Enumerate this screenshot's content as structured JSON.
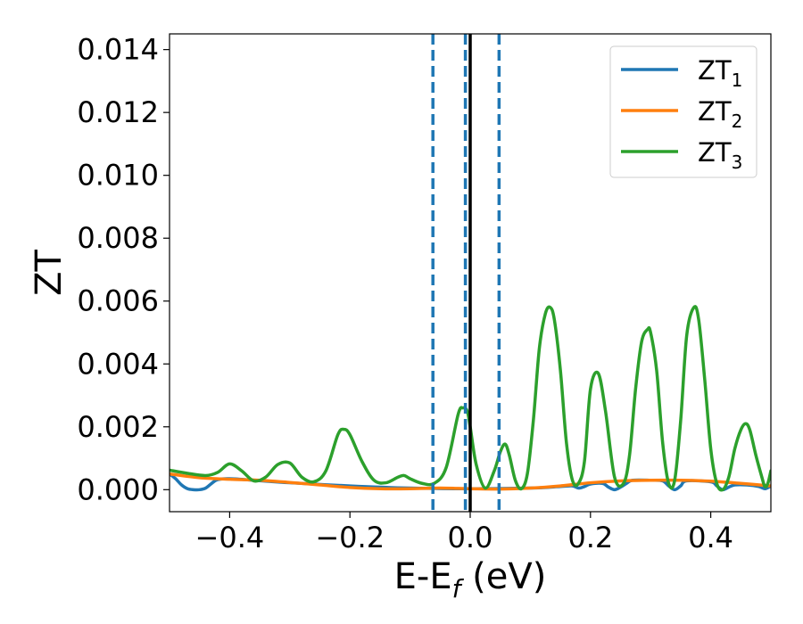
{
  "chart_data": {
    "type": "line",
    "xlabel_main": "E-E",
    "xlabel_sub": "f",
    "xlabel_unit": " (eV)",
    "ylabel": "ZT",
    "xlim": [
      -0.5,
      0.5
    ],
    "ylim": [
      -0.0007,
      0.0145
    ],
    "x_ticks": [
      -0.4,
      -0.2,
      0.0,
      0.2,
      0.4
    ],
    "x_tick_labels": [
      "−0.4",
      "−0.2",
      "0.0",
      "0.2",
      "0.4"
    ],
    "y_ticks": [
      0.0,
      0.002,
      0.004,
      0.006,
      0.008,
      0.01,
      0.012,
      0.014
    ],
    "y_tick_labels": [
      "0.000",
      "0.002",
      "0.004",
      "0.006",
      "0.008",
      "0.010",
      "0.012",
      "0.014"
    ],
    "grid": false,
    "legend_position": "top-right",
    "vlines": [
      {
        "x": -0.062,
        "style": "dashed",
        "color": "#1f77b4"
      },
      {
        "x": -0.008,
        "style": "dashed",
        "color": "#1f77b4"
      },
      {
        "x": 0.048,
        "style": "dashed",
        "color": "#1f77b4"
      },
      {
        "x": 0.0,
        "style": "solid",
        "color": "#000000"
      }
    ],
    "series": [
      {
        "name": "ZT",
        "sub": "1",
        "color": "#1f77b4",
        "x": [
          -0.5,
          -0.49,
          -0.48,
          -0.47,
          -0.46,
          -0.45,
          -0.44,
          -0.43,
          -0.42,
          -0.4,
          -0.36,
          -0.3,
          -0.2,
          -0.1,
          0.0,
          0.1,
          0.15,
          0.17,
          0.18,
          0.19,
          0.2,
          0.22,
          0.23,
          0.24,
          0.25,
          0.26,
          0.27,
          0.3,
          0.32,
          0.33,
          0.34,
          0.35,
          0.36,
          0.4,
          0.41,
          0.42,
          0.43,
          0.44,
          0.46,
          0.48,
          0.49,
          0.5
        ],
        "y": [
          0.0005,
          0.00035,
          0.00015,
          3e-05,
          0.0,
          0.0,
          5e-05,
          0.0002,
          0.00032,
          0.00035,
          0.0003,
          0.00022,
          0.00012,
          5e-05,
          3e-05,
          5e-05,
          0.0001,
          0.00012,
          5e-05,
          0.0001,
          0.00018,
          0.0002,
          8e-05,
          0.0,
          8e-05,
          0.0002,
          0.0003,
          0.0003,
          0.00028,
          0.00012,
          0.0,
          0.00012,
          0.00028,
          0.00025,
          0.00012,
          0.0,
          8e-05,
          0.00015,
          0.00015,
          0.0001,
          3e-05,
          0.00012
        ]
      },
      {
        "name": "ZT",
        "sub": "2",
        "color": "#ff7f0e",
        "x": [
          -0.5,
          -0.45,
          -0.4,
          -0.35,
          -0.3,
          -0.25,
          -0.2,
          -0.15,
          -0.1,
          -0.05,
          0.0,
          0.05,
          0.1,
          0.15,
          0.2,
          0.25,
          0.3,
          0.35,
          0.4,
          0.45,
          0.5
        ],
        "y": [
          0.0005,
          0.00038,
          0.00033,
          0.0003,
          0.00023,
          0.00015,
          7e-05,
          3e-05,
          3e-05,
          5e-05,
          3e-05,
          2e-05,
          5e-05,
          0.00012,
          0.00022,
          0.00028,
          0.0003,
          0.0003,
          0.00027,
          0.0002,
          0.00012
        ]
      },
      {
        "name": "ZT",
        "sub": "3",
        "color": "#2ca02c",
        "x": [
          -0.5,
          -0.47,
          -0.44,
          -0.42,
          -0.4,
          -0.38,
          -0.36,
          -0.34,
          -0.32,
          -0.3,
          -0.28,
          -0.26,
          -0.24,
          -0.22,
          -0.21,
          -0.2,
          -0.18,
          -0.16,
          -0.14,
          -0.12,
          -0.11,
          -0.1,
          -0.08,
          -0.06,
          -0.04,
          -0.02,
          -0.012,
          -0.005,
          0.0,
          0.01,
          0.025,
          0.04,
          0.05,
          0.058,
          0.065,
          0.075,
          0.085,
          0.095,
          0.105,
          0.115,
          0.125,
          0.133,
          0.14,
          0.15,
          0.16,
          0.17,
          0.18,
          0.19,
          0.2,
          0.213,
          0.225,
          0.24,
          0.255,
          0.265,
          0.275,
          0.285,
          0.295,
          0.3,
          0.31,
          0.32,
          0.33,
          0.34,
          0.35,
          0.36,
          0.372,
          0.38,
          0.39,
          0.4,
          0.41,
          0.42,
          0.43,
          0.44,
          0.45,
          0.458,
          0.465,
          0.475,
          0.485,
          0.49,
          0.495,
          0.5
        ],
        "y": [
          0.00062,
          0.00052,
          0.00045,
          0.00055,
          0.00082,
          0.0006,
          0.00028,
          0.0004,
          0.0008,
          0.00085,
          0.0004,
          0.00025,
          0.0006,
          0.00175,
          0.00192,
          0.00175,
          0.0009,
          0.0003,
          0.00022,
          0.0004,
          0.00045,
          0.00035,
          0.0002,
          0.0002,
          0.0007,
          0.0024,
          0.0026,
          0.0025,
          0.002,
          0.0008,
          5e-05,
          0.0006,
          0.0012,
          0.00145,
          0.0011,
          0.0003,
          3e-05,
          0.0005,
          0.0022,
          0.0045,
          0.0056,
          0.0058,
          0.0054,
          0.0038,
          0.0015,
          0.0003,
          0.0002,
          0.0009,
          0.0032,
          0.0037,
          0.0025,
          0.0004,
          0.0002,
          0.0011,
          0.0032,
          0.0047,
          0.0051,
          0.005,
          0.0038,
          0.0015,
          0.0002,
          0.0003,
          0.0022,
          0.0049,
          0.0058,
          0.0054,
          0.0035,
          0.0013,
          0.0002,
          0.0,
          0.0004,
          0.0013,
          0.0019,
          0.0021,
          0.0019,
          0.0011,
          0.0004,
          0.0001,
          0.0002,
          0.0006
        ]
      }
    ]
  }
}
